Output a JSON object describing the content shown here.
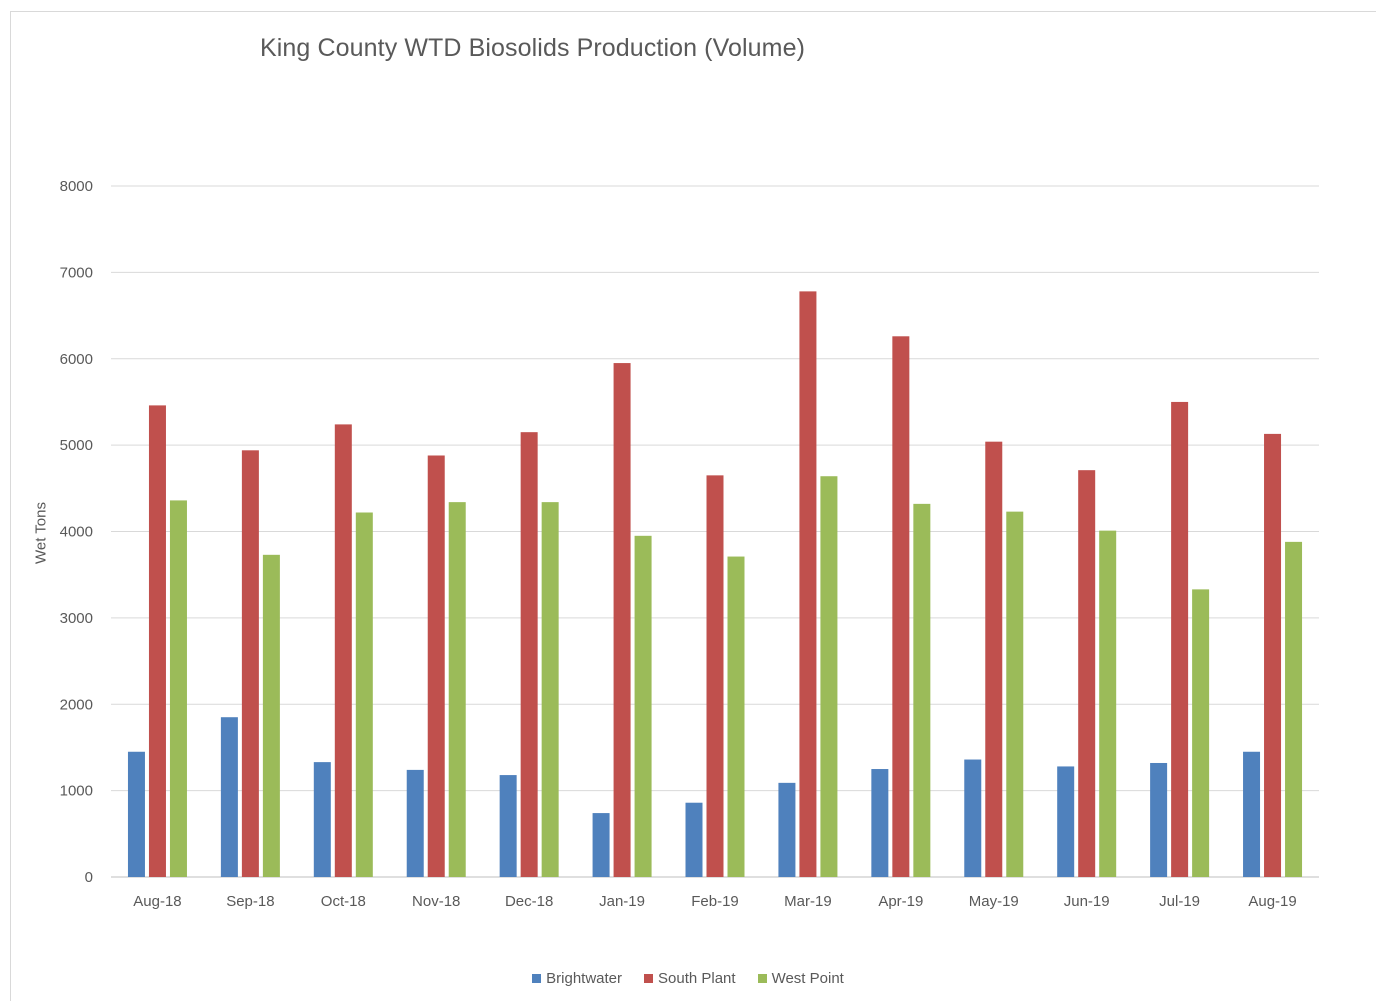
{
  "chart_data": {
    "type": "bar",
    "title": "King County WTD Biosolids Production (Volume)",
    "xlabel": "",
    "ylabel": "Wet Tons",
    "ylim": [
      0,
      8000
    ],
    "yticks": [
      0,
      1000,
      2000,
      3000,
      4000,
      5000,
      6000,
      7000,
      8000
    ],
    "grid": true,
    "legend_position": "bottom",
    "categories": [
      "Aug-18",
      "Sep-18",
      "Oct-18",
      "Nov-18",
      "Dec-18",
      "Jan-19",
      "Feb-19",
      "Mar-19",
      "Apr-19",
      "May-19",
      "Jun-19",
      "Jul-19",
      "Aug-19"
    ],
    "series": [
      {
        "name": "Brightwater",
        "color": "#4f81bd",
        "values": [
          1450,
          1850,
          1330,
          1240,
          1180,
          740,
          860,
          1090,
          1250,
          1360,
          1280,
          1320,
          1450
        ]
      },
      {
        "name": "South Plant",
        "color": "#c0504d",
        "values": [
          5460,
          4940,
          5240,
          4880,
          5150,
          5950,
          4650,
          6780,
          6260,
          5040,
          4710,
          5500,
          5130
        ]
      },
      {
        "name": "West Point",
        "color": "#9bbb59",
        "values": [
          4360,
          3730,
          4220,
          4340,
          4340,
          3950,
          3710,
          4640,
          4320,
          4230,
          4010,
          3330,
          3880
        ]
      }
    ]
  }
}
